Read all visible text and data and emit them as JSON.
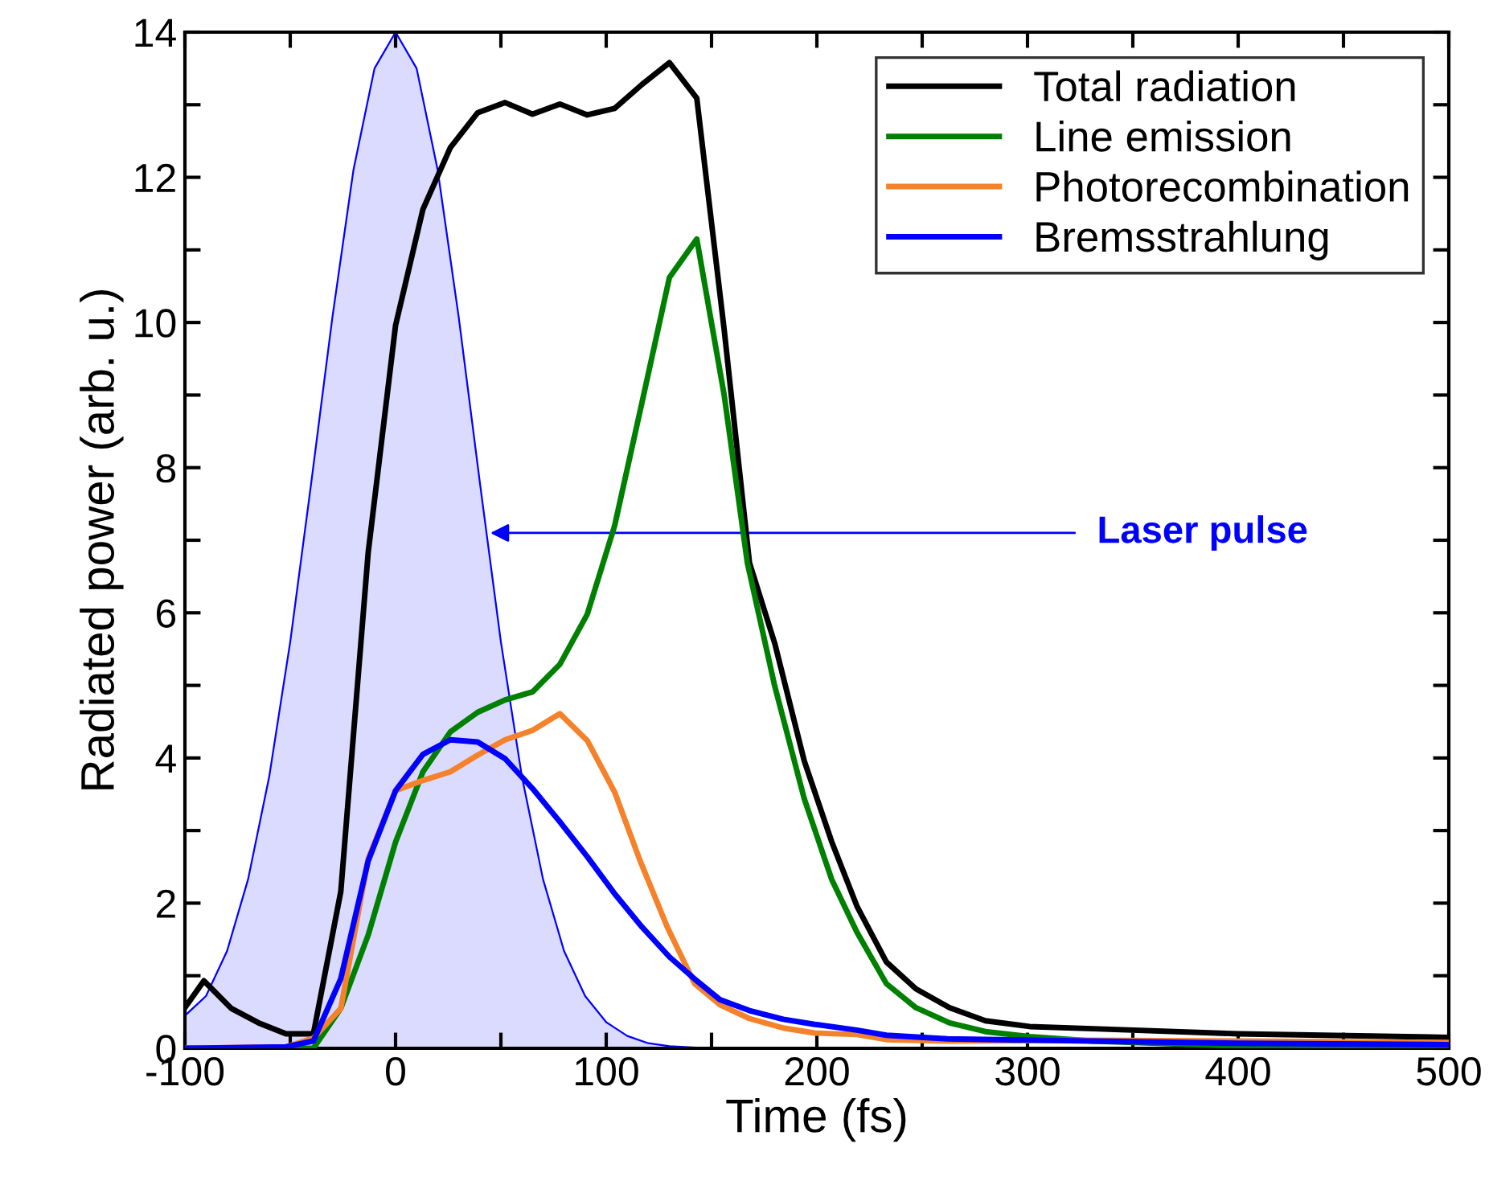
{
  "chart_data": {
    "type": "line",
    "xlabel": "Time (fs)",
    "ylabel": "Radiated power (arb. u.)",
    "xlim": [
      -100,
      500
    ],
    "ylim": [
      0,
      14
    ],
    "xticks": [
      -100,
      {
        "value": -50,
        "label": null
      },
      0,
      {
        "value": 50,
        "label": null
      },
      100,
      {
        "value": 150,
        "label": null
      },
      200,
      {
        "value": 250,
        "label": null
      },
      300,
      {
        "value": 350,
        "label": null
      },
      400,
      {
        "value": 450,
        "label": null
      },
      500
    ],
    "yticks": [
      0,
      {
        "value": 1,
        "label": null
      },
      2,
      {
        "value": 3,
        "label": null
      },
      4,
      {
        "value": 5,
        "label": null
      },
      6,
      {
        "value": 7,
        "label": null
      },
      8,
      {
        "value": 9,
        "label": null
      },
      10,
      {
        "value": 11,
        "label": null
      },
      12,
      {
        "value": 13,
        "label": null
      },
      14
    ],
    "grid": false,
    "legend": "top right",
    "line_style": "solid",
    "marker": "none",
    "series": [
      {
        "type": "area",
        "color": "#0000ff",
        "x": [
          -100,
          -90,
          -80,
          -70,
          -60,
          -50,
          -40,
          -30,
          -20,
          -10,
          0,
          10,
          20,
          30,
          40,
          50,
          60,
          70,
          80,
          90,
          100,
          110,
          120,
          130,
          150,
          500
        ],
        "values": [
          0.45,
          0.72,
          1.34,
          2.33,
          3.74,
          5.6,
          7.8,
          10.07,
          12.1,
          13.5,
          14,
          13.5,
          12.1,
          10.07,
          7.8,
          5.6,
          3.74,
          2.33,
          1.34,
          0.72,
          0.36,
          0.17,
          0.07,
          0.03,
          0,
          0
        ]
      },
      {
        "name": "Total radiation",
        "color": "#000000",
        "x": [
          -100,
          -91,
          -78,
          -65,
          -52,
          -39,
          -26,
          -13,
          0,
          13,
          26,
          39,
          52,
          65,
          78,
          91,
          104,
          117,
          130,
          143,
          156,
          168,
          180,
          194,
          207,
          219,
          233,
          247,
          263,
          280,
          301,
          331,
          400,
          500
        ],
        "values": [
          0.56,
          0.93,
          0.55,
          0.35,
          0.2,
          0.2,
          2.16,
          6.83,
          9.96,
          11.56,
          12.41,
          12.89,
          13.03,
          12.87,
          13.01,
          12.86,
          12.95,
          13.28,
          13.58,
          13.09,
          9.9,
          6.69,
          5.58,
          3.96,
          2.85,
          1.96,
          1.19,
          0.82,
          0.56,
          0.38,
          0.3,
          0.27,
          0.2,
          0.15
        ]
      },
      {
        "name": "Line emission",
        "color": "#008000",
        "x": [
          -100,
          -52,
          -39,
          -26,
          -13,
          0,
          13,
          26,
          39,
          52,
          65,
          78,
          91,
          104,
          117,
          130,
          143,
          156,
          167,
          180,
          194,
          207,
          219,
          233,
          247,
          263,
          280,
          301,
          331,
          400,
          500
        ],
        "values": [
          0,
          0,
          0,
          0.55,
          1.56,
          2.84,
          3.81,
          4.36,
          4.63,
          4.8,
          4.91,
          5.29,
          5.98,
          7.2,
          8.9,
          10.62,
          11.15,
          9.0,
          6.69,
          4.99,
          3.44,
          2.33,
          1.6,
          0.89,
          0.56,
          0.35,
          0.23,
          0.16,
          0.1,
          0.03,
          0.02
        ]
      },
      {
        "name": "Photorecombination",
        "color": "#f5822a",
        "x": [
          -100,
          -52,
          -39,
          -26,
          -13,
          0,
          13,
          26,
          39,
          52,
          65,
          78,
          91,
          104,
          116,
          129,
          142,
          154,
          168,
          184,
          199,
          219,
          233,
          262,
          331,
          400,
          500
        ],
        "values": [
          0,
          0.02,
          0.14,
          0.55,
          2.61,
          3.55,
          3.69,
          3.81,
          4.04,
          4.25,
          4.38,
          4.61,
          4.24,
          3.53,
          2.59,
          1.67,
          0.89,
          0.6,
          0.41,
          0.28,
          0.21,
          0.19,
          0.12,
          0.1,
          0.11,
          0.1,
          0.08
        ]
      },
      {
        "name": "Bremsstrahlung",
        "color": "#0000ff",
        "x": [
          -100,
          -52,
          -39,
          -26,
          -13,
          0,
          13,
          26,
          39,
          52,
          65,
          78,
          91,
          104,
          117,
          130,
          143,
          154,
          168,
          184,
          199,
          219,
          233,
          262,
          331,
          400,
          500
        ],
        "values": [
          0,
          0.02,
          0.1,
          0.96,
          2.58,
          3.55,
          4.05,
          4.25,
          4.22,
          3.99,
          3.58,
          3.12,
          2.64,
          2.13,
          1.67,
          1.26,
          0.93,
          0.67,
          0.52,
          0.4,
          0.33,
          0.25,
          0.18,
          0.13,
          0.1,
          0.07,
          0.05
        ]
      }
    ],
    "annotations": [
      {
        "text": "Laser pulse",
        "x": 45,
        "y": 7.1
      }
    ]
  }
}
